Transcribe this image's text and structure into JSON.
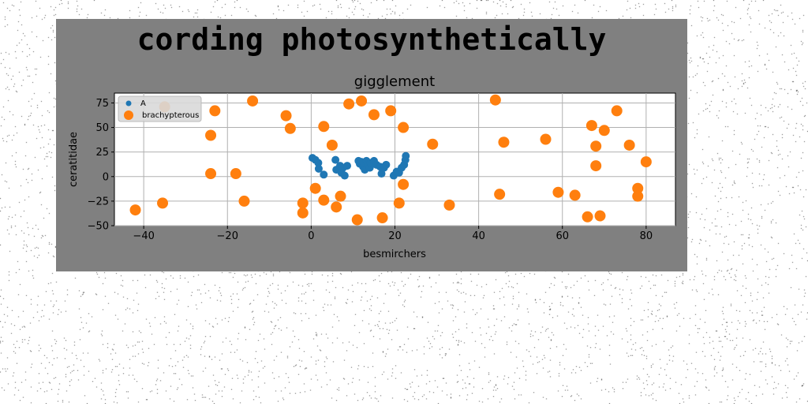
{
  "figure": {
    "heading": "cording photosynthetically"
  },
  "colors": {
    "panel": "#808080",
    "plot_bg": "#ffffff",
    "series_a": "#1f77b4",
    "series_b": "#ff7f0e",
    "grid": "#b0b0b0"
  },
  "chart_data": {
    "type": "scatter",
    "title": "gigglement",
    "xlabel": "besmirchers",
    "ylabel": "ceratitidae",
    "xlim": [
      -47,
      87
    ],
    "ylim": [
      -50,
      85
    ],
    "xticks": [
      -40,
      -20,
      0,
      20,
      40,
      60,
      80
    ],
    "yticks": [
      -50,
      -25,
      0,
      25,
      50,
      75
    ],
    "xtick_labels": [
      "−40",
      "−20",
      "0",
      "20",
      "40",
      "60",
      "80"
    ],
    "ytick_labels": [
      "−50",
      "−25",
      "0",
      "25",
      "50",
      "75"
    ],
    "grid": true,
    "legend": "top-left",
    "series": [
      {
        "name": "A",
        "marker": "small",
        "points": [
          [
            0.3,
            19
          ],
          [
            1.0,
            17
          ],
          [
            1.7,
            14
          ],
          [
            1.8,
            8
          ],
          [
            3.0,
            2
          ],
          [
            5.8,
            17
          ],
          [
            6.0,
            7
          ],
          [
            6.9,
            11
          ],
          [
            7.2,
            4
          ],
          [
            7.6,
            9
          ],
          [
            8.0,
            1
          ],
          [
            8.6,
            11
          ],
          [
            11.3,
            16
          ],
          [
            11.6,
            13
          ],
          [
            12.0,
            15
          ],
          [
            12.4,
            10
          ],
          [
            12.8,
            7
          ],
          [
            13.2,
            16
          ],
          [
            13.6,
            12
          ],
          [
            14.0,
            9
          ],
          [
            14.2,
            14
          ],
          [
            15.0,
            16
          ],
          [
            15.6,
            12
          ],
          [
            16.5,
            10
          ],
          [
            16.8,
            3
          ],
          [
            17.4,
            9
          ],
          [
            17.9,
            12
          ],
          [
            19.7,
            1
          ],
          [
            20.4,
            5
          ],
          [
            21.0,
            4
          ],
          [
            21.6,
            9
          ],
          [
            22.2,
            12
          ],
          [
            22.5,
            17
          ],
          [
            22.6,
            21
          ]
        ]
      },
      {
        "name": "brachypterous",
        "marker": "large",
        "points": [
          [
            -42,
            -34
          ],
          [
            -35.5,
            -27
          ],
          [
            -35,
            71
          ],
          [
            -24,
            42
          ],
          [
            -24,
            3
          ],
          [
            -23,
            67
          ],
          [
            -18,
            3
          ],
          [
            -16,
            -25
          ],
          [
            -14,
            77
          ],
          [
            -6,
            62
          ],
          [
            -5,
            49
          ],
          [
            -2,
            -27
          ],
          [
            -2,
            -37
          ],
          [
            1,
            -12
          ],
          [
            3,
            51
          ],
          [
            3,
            -24
          ],
          [
            5,
            32
          ],
          [
            6,
            -31
          ],
          [
            7,
            -20
          ],
          [
            9,
            74
          ],
          [
            11,
            -44
          ],
          [
            12,
            77
          ],
          [
            15,
            63
          ],
          [
            17,
            -42
          ],
          [
            19,
            67
          ],
          [
            21,
            -27
          ],
          [
            22,
            50
          ],
          [
            22,
            -8
          ],
          [
            29,
            33
          ],
          [
            33,
            -29
          ],
          [
            44,
            78
          ],
          [
            45,
            -18
          ],
          [
            46,
            35
          ],
          [
            56,
            38
          ],
          [
            59,
            -16
          ],
          [
            63,
            -19
          ],
          [
            66,
            -41
          ],
          [
            67,
            52
          ],
          [
            68,
            31
          ],
          [
            68,
            11
          ],
          [
            69,
            -40
          ],
          [
            70,
            47
          ],
          [
            73,
            67
          ],
          [
            76,
            32
          ],
          [
            78,
            -12
          ],
          [
            78,
            -20
          ],
          [
            80,
            15
          ]
        ]
      }
    ]
  }
}
